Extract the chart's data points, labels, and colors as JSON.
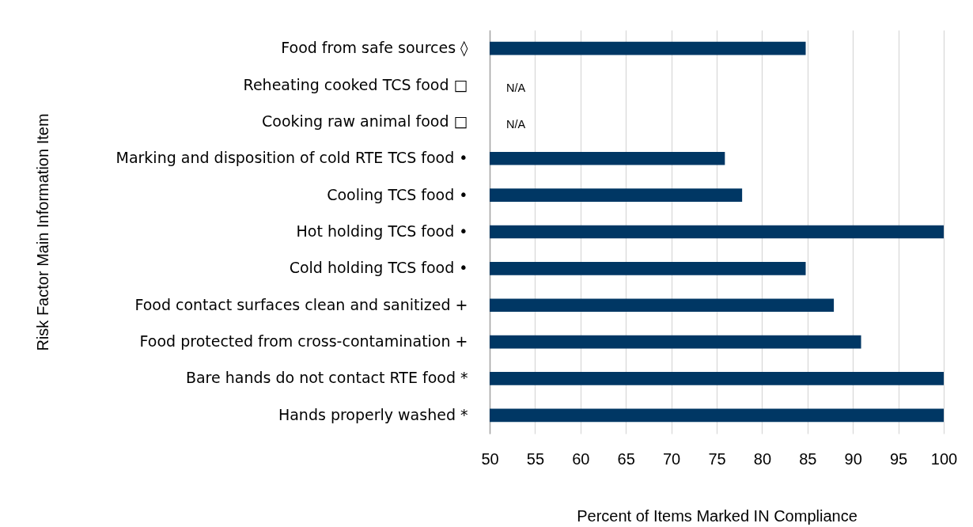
{
  "chart_data": {
    "type": "bar",
    "orientation": "horizontal",
    "xlabel": "Percent of Items Marked IN Compliance",
    "ylabel": "Risk Factor Main Information Item",
    "categories": [
      "Food from safe sources ◊",
      "Reheating cooked TCS food □",
      "Cooking raw animal food □",
      "Marking and disposition of cold RTE TCS food •",
      "Cooling TCS food •",
      "Hot holding TCS food •",
      "Cold holding TCS food •",
      "Food contact surfaces clean and sanitized +",
      "Food protected from cross-contamination +",
      "Bare hands do not contact RTE food *",
      "Hands properly washed *"
    ],
    "values": [
      84.8,
      null,
      null,
      75.9,
      77.8,
      100,
      84.8,
      87.9,
      90.9,
      100,
      100
    ],
    "value_labels": [
      null,
      "N/A",
      "N/A",
      null,
      null,
      null,
      null,
      null,
      null,
      null,
      null
    ],
    "color": "#003764",
    "xlim": [
      50,
      100
    ],
    "xticks": [
      50,
      55,
      60,
      65,
      70,
      75,
      80,
      85,
      90,
      95,
      100
    ],
    "grid": "x"
  }
}
